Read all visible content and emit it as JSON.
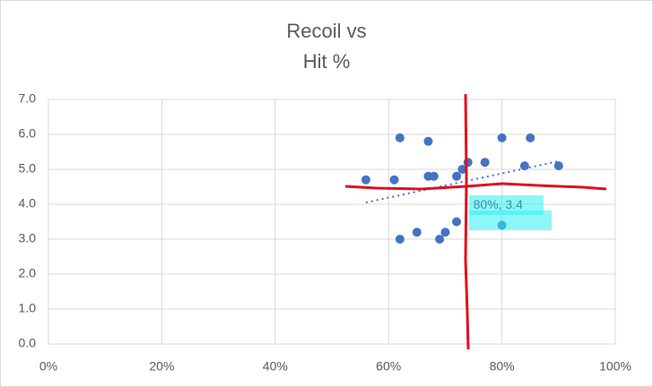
{
  "chart_data": {
    "type": "scatter",
    "title": [
      "Recoil vs",
      "Hit %"
    ],
    "series": [
      {
        "color": "#4472c4",
        "x": [
          56,
          61,
          62,
          67,
          67,
          68,
          72,
          73,
          74,
          77,
          80,
          85,
          84,
          90,
          62,
          65,
          69,
          70,
          72,
          80
        ],
        "values": [
          4.7,
          4.7,
          5.9,
          5.8,
          4.8,
          4.8,
          4.8,
          5.0,
          5.2,
          5.2,
          5.9,
          5.9,
          5.1,
          5.1,
          3.0,
          3.2,
          3.0,
          3.2,
          3.5,
          3.4
        ]
      }
    ],
    "trendline": {
      "x": [
        56,
        90
      ],
      "values": [
        4.05,
        5.23
      ],
      "color": "#4472c4"
    },
    "annotations": [
      {
        "text": "80%, 3.4",
        "x": 80,
        "y": 3.4
      }
    ],
    "xlim": [
      0,
      100
    ],
    "xticks": [
      {
        "value": 0,
        "label": "0%"
      },
      {
        "value": 20,
        "label": "20%"
      },
      {
        "value": 40,
        "label": "40%"
      },
      {
        "value": 60,
        "label": "60%"
      },
      {
        "value": 80,
        "label": "80%"
      },
      {
        "value": 100,
        "label": "100%"
      }
    ],
    "ylim": [
      0,
      7
    ],
    "yticks": [
      {
        "value": 0,
        "label": "0.0"
      },
      {
        "value": 1,
        "label": "1.0"
      },
      {
        "value": 2,
        "label": "2.0"
      },
      {
        "value": 3,
        "label": "3.0"
      },
      {
        "value": 4,
        "label": "4.0"
      },
      {
        "value": 5,
        "label": "5.0"
      },
      {
        "value": 6,
        "label": "6.0"
      },
      {
        "value": 7,
        "label": "7.0"
      }
    ],
    "grid": true
  }
}
